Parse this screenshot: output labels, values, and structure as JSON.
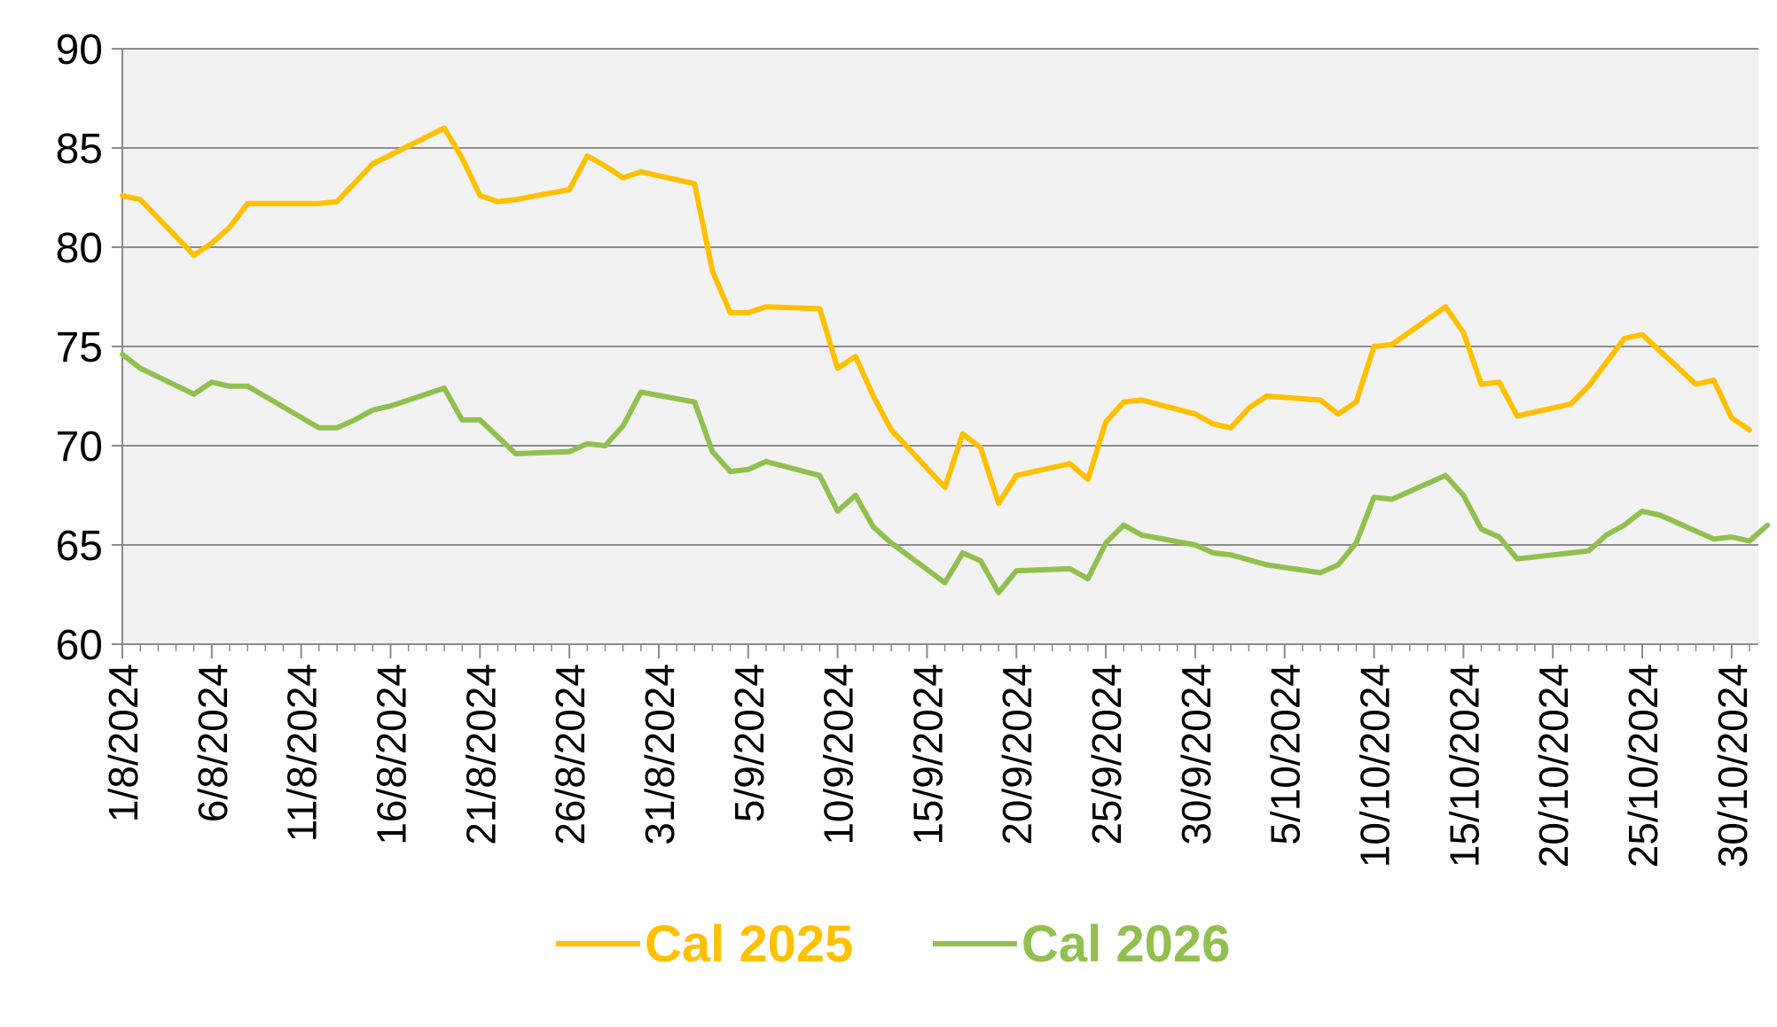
{
  "chart_data": {
    "type": "line",
    "title": "",
    "xlabel": "",
    "ylabel": "",
    "ylim": [
      60,
      90
    ],
    "y_ticks": [
      60,
      65,
      70,
      75,
      80,
      85,
      90
    ],
    "x_range": [
      "1/8/2024",
      "31/10/2024"
    ],
    "x_tick_labels": [
      "1/8/2024",
      "6/8/2024",
      "11/8/2024",
      "16/8/2024",
      "21/8/2024",
      "26/8/2024",
      "31/8/2024",
      "5/9/2024",
      "10/9/2024",
      "15/9/2024",
      "20/9/2024",
      "25/9/2024",
      "30/9/2024",
      "5/10/2024",
      "10/10/2024",
      "15/10/2024",
      "20/10/2024",
      "25/10/2024",
      "30/10/2024"
    ],
    "grid": "horizontal",
    "plot_background": "#f2f2f2",
    "legend_position": "bottom-center",
    "series": [
      {
        "name": "Cal 2025",
        "color": "#ffc000",
        "points": [
          [
            "1/8/2024",
            82.6
          ],
          [
            "2/8/2024",
            82.4
          ],
          [
            "5/8/2024",
            79.6
          ],
          [
            "6/8/2024",
            80.2
          ],
          [
            "7/8/2024",
            81.0
          ],
          [
            "8/8/2024",
            82.2
          ],
          [
            "12/8/2024",
            82.2
          ],
          [
            "13/8/2024",
            82.3
          ],
          [
            "15/8/2024",
            84.2
          ],
          [
            "19/8/2024",
            86.0
          ],
          [
            "20/8/2024",
            84.5
          ],
          [
            "21/8/2024",
            82.6
          ],
          [
            "22/8/2024",
            82.3
          ],
          [
            "23/8/2024",
            82.4
          ],
          [
            "26/8/2024",
            82.9
          ],
          [
            "27/8/2024",
            84.6
          ],
          [
            "28/8/2024",
            84.1
          ],
          [
            "29/8/2024",
            83.5
          ],
          [
            "30/8/2024",
            83.8
          ],
          [
            "2/9/2024",
            83.2
          ],
          [
            "3/9/2024",
            78.8
          ],
          [
            "4/9/2024",
            76.7
          ],
          [
            "5/9/2024",
            76.7
          ],
          [
            "6/9/2024",
            77.0
          ],
          [
            "9/9/2024",
            76.9
          ],
          [
            "10/9/2024",
            73.9
          ],
          [
            "11/9/2024",
            74.5
          ],
          [
            "12/9/2024",
            72.5
          ],
          [
            "13/9/2024",
            70.8
          ],
          [
            "16/9/2024",
            67.9
          ],
          [
            "17/9/2024",
            70.6
          ],
          [
            "18/9/2024",
            69.9
          ],
          [
            "19/9/2024",
            67.1
          ],
          [
            "20/9/2024",
            68.5
          ],
          [
            "23/9/2024",
            69.1
          ],
          [
            "24/9/2024",
            68.3
          ],
          [
            "25/9/2024",
            71.2
          ],
          [
            "26/9/2024",
            72.2
          ],
          [
            "27/9/2024",
            72.3
          ],
          [
            "30/9/2024",
            71.6
          ],
          [
            "1/10/2024",
            71.1
          ],
          [
            "2/10/2024",
            70.9
          ],
          [
            "3/10/2024",
            71.9
          ],
          [
            "4/10/2024",
            72.5
          ],
          [
            "7/10/2024",
            72.3
          ],
          [
            "8/10/2024",
            71.6
          ],
          [
            "9/10/2024",
            72.2
          ],
          [
            "10/10/2024",
            75.0
          ],
          [
            "11/10/2024",
            75.1
          ],
          [
            "14/10/2024",
            77.0
          ],
          [
            "15/10/2024",
            75.7
          ],
          [
            "16/10/2024",
            73.1
          ],
          [
            "17/10/2024",
            73.2
          ],
          [
            "18/10/2024",
            71.5
          ],
          [
            "21/10/2024",
            72.1
          ],
          [
            "22/10/2024",
            73.0
          ],
          [
            "24/10/2024",
            75.4
          ],
          [
            "25/10/2024",
            75.6
          ],
          [
            "28/10/2024",
            73.1
          ],
          [
            "29/10/2024",
            73.3
          ],
          [
            "30/10/2024",
            71.4
          ],
          [
            "31/10/2024",
            70.8
          ]
        ]
      },
      {
        "name": "Cal 2026",
        "color": "#92c050",
        "points": [
          [
            "1/8/2024",
            74.6
          ],
          [
            "2/8/2024",
            73.9
          ],
          [
            "5/8/2024",
            72.6
          ],
          [
            "6/8/2024",
            73.2
          ],
          [
            "7/8/2024",
            73.0
          ],
          [
            "8/8/2024",
            73.0
          ],
          [
            "12/8/2024",
            70.9
          ],
          [
            "13/8/2024",
            70.9
          ],
          [
            "14/8/2024",
            71.3
          ],
          [
            "15/8/2024",
            71.8
          ],
          [
            "16/8/2024",
            72.0
          ],
          [
            "19/8/2024",
            72.9
          ],
          [
            "20/8/2024",
            71.3
          ],
          [
            "21/8/2024",
            71.3
          ],
          [
            "23/8/2024",
            69.6
          ],
          [
            "26/8/2024",
            69.7
          ],
          [
            "27/8/2024",
            70.1
          ],
          [
            "28/8/2024",
            70.0
          ],
          [
            "29/8/2024",
            71.0
          ],
          [
            "30/8/2024",
            72.7
          ],
          [
            "2/9/2024",
            72.2
          ],
          [
            "3/9/2024",
            69.7
          ],
          [
            "4/9/2024",
            68.7
          ],
          [
            "5/9/2024",
            68.8
          ],
          [
            "6/9/2024",
            69.2
          ],
          [
            "9/9/2024",
            68.5
          ],
          [
            "10/9/2024",
            66.7
          ],
          [
            "11/9/2024",
            67.5
          ],
          [
            "12/9/2024",
            65.9
          ],
          [
            "13/9/2024",
            65.1
          ],
          [
            "16/9/2024",
            63.1
          ],
          [
            "17/9/2024",
            64.6
          ],
          [
            "18/9/2024",
            64.2
          ],
          [
            "19/9/2024",
            62.6
          ],
          [
            "20/9/2024",
            63.7
          ],
          [
            "23/9/2024",
            63.8
          ],
          [
            "24/9/2024",
            63.3
          ],
          [
            "25/9/2024",
            65.1
          ],
          [
            "26/9/2024",
            66.0
          ],
          [
            "27/9/2024",
            65.5
          ],
          [
            "30/9/2024",
            65.0
          ],
          [
            "1/10/2024",
            64.6
          ],
          [
            "2/10/2024",
            64.5
          ],
          [
            "4/10/2024",
            64.0
          ],
          [
            "7/10/2024",
            63.6
          ],
          [
            "8/10/2024",
            64.0
          ],
          [
            "9/10/2024",
            65.1
          ],
          [
            "10/10/2024",
            67.4
          ],
          [
            "11/10/2024",
            67.3
          ],
          [
            "14/10/2024",
            68.5
          ],
          [
            "15/10/2024",
            67.5
          ],
          [
            "16/10/2024",
            65.8
          ],
          [
            "17/10/2024",
            65.4
          ],
          [
            "18/10/2024",
            64.3
          ],
          [
            "22/10/2024",
            64.7
          ],
          [
            "23/10/2024",
            65.5
          ],
          [
            "24/10/2024",
            66.0
          ],
          [
            "25/10/2024",
            66.7
          ],
          [
            "26/10/2024",
            66.5
          ],
          [
            "29/10/2024",
            65.3
          ],
          [
            "30/10/2024",
            65.4
          ],
          [
            "31/10/2024",
            65.2
          ],
          [
            "1/11/2024",
            66.0
          ]
        ]
      }
    ]
  }
}
